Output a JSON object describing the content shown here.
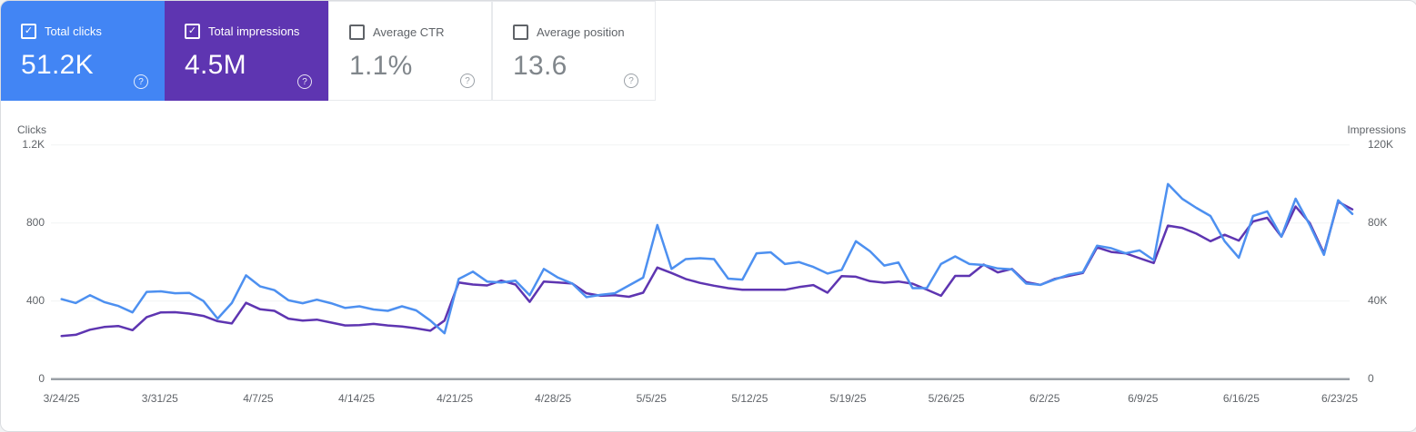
{
  "icons": {
    "checked_glyph": "✓",
    "help_glyph": "?"
  },
  "cards": [
    {
      "label": "Total clicks",
      "value": "51.2K",
      "selected": true,
      "color": "#4285f4"
    },
    {
      "label": "Total impressions",
      "value": "4.5M",
      "selected": true,
      "color": "#5e35b1"
    },
    {
      "label": "Average CTR",
      "value": "1.1%",
      "selected": false,
      "color": "#ffffff"
    },
    {
      "label": "Average position",
      "value": "13.6",
      "selected": false,
      "color": "#ffffff"
    }
  ],
  "chart_data": {
    "type": "line",
    "frequency": "daily",
    "start_date": "3/24/25",
    "end_date": "6/23/25",
    "x_tick_labels": [
      "3/24/25",
      "3/31/25",
      "4/7/25",
      "4/14/25",
      "4/21/25",
      "4/28/25",
      "5/5/25",
      "5/12/25",
      "5/19/25",
      "5/26/25",
      "6/2/25",
      "6/9/25",
      "6/16/25",
      "6/23/25"
    ],
    "left_axis": {
      "title": "Clicks",
      "ticks": [
        "0",
        "400",
        "800",
        "1.2K"
      ],
      "max": 1200
    },
    "right_axis": {
      "title": "Impressions",
      "ticks": [
        "0",
        "40K",
        "80K",
        "120K"
      ],
      "max_thousands": 120
    },
    "grid": "horizontal-light",
    "series": [
      {
        "name": "Total impressions",
        "axis": "right",
        "color": "#5e35b1",
        "unit": "thousands",
        "values": [
          22.1,
          22.7,
          25.3,
          26.7,
          27.2,
          25.1,
          31.8,
          34.2,
          34.3,
          33.6,
          32.4,
          29.7,
          28.5,
          39.1,
          35.8,
          35.0,
          31.0,
          30.0,
          30.5,
          29.0,
          27.5,
          27.7,
          28.3,
          27.5,
          27.0,
          26.0,
          24.8,
          30.0,
          49.5,
          48.5,
          48.0,
          50.5,
          48.5,
          39.6,
          50.0,
          49.5,
          49.0,
          44.0,
          42.7,
          43.0,
          42.2,
          44.3,
          57.2,
          54.4,
          51.3,
          49.3,
          47.9,
          46.6,
          45.8,
          45.8,
          45.8,
          45.8,
          47.2,
          48.2,
          44.3,
          52.8,
          52.5,
          50.2,
          49.4,
          50.0,
          48.9,
          45.9,
          42.7,
          52.9,
          52.9,
          58.7,
          54.7,
          56.5,
          49.7,
          48.3,
          51.3,
          52.9,
          54.4,
          67.5,
          65.2,
          64.5,
          62.0,
          59.5,
          78.7,
          77.5,
          74.6,
          70.7,
          74.0,
          71.0,
          80.8,
          82.7,
          73.0,
          88.5,
          80.0,
          64.5,
          90.9,
          87.0
        ]
      },
      {
        "name": "Total clicks",
        "axis": "left",
        "color": "#4d90f0",
        "unit": "count",
        "values": [
          410,
          390,
          430,
          395,
          375,
          342,
          447,
          450,
          440,
          442,
          400,
          310,
          390,
          532,
          475,
          456,
          404,
          389,
          407,
          389,
          365,
          373,
          357,
          350,
          373,
          352,
          300,
          235,
          513,
          551,
          500,
          495,
          505,
          430,
          565,
          520,
          490,
          420,
          432,
          440,
          480,
          520,
          790,
          565,
          615,
          620,
          615,
          515,
          510,
          645,
          650,
          590,
          600,
          575,
          541,
          560,
          707,
          655,
          582,
          598,
          466,
          466,
          590,
          629,
          590,
          585,
          567,
          563,
          490,
          483,
          510,
          535,
          548,
          684,
          671,
          645,
          660,
          610,
          1000,
          925,
          878,
          836,
          707,
          622,
          836,
          860,
          730,
          925,
          790,
          637,
          917,
          847
        ]
      }
    ]
  }
}
